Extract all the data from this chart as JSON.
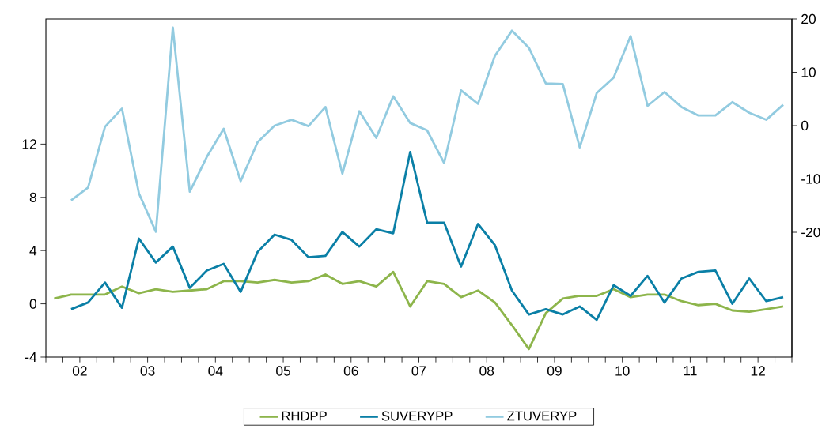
{
  "chart_data": {
    "type": "line",
    "x": [
      "2002-02-15",
      "2002-05-15",
      "2002-08-15",
      "2002-11-15",
      "2003-02-15",
      "2003-05-15",
      "2003-08-15",
      "2003-11-15",
      "2004-02-15",
      "2004-05-15",
      "2004-08-15",
      "2004-11-15",
      "2005-02-15",
      "2005-05-15",
      "2005-08-15",
      "2005-11-15",
      "2006-02-15",
      "2006-05-15",
      "2006-08-15",
      "2006-11-15",
      "2007-02-15",
      "2007-05-15",
      "2007-08-15",
      "2007-11-15",
      "2008-02-15",
      "2008-05-15",
      "2008-08-15",
      "2008-11-15",
      "2009-02-15",
      "2009-05-15",
      "2009-08-15",
      "2009-11-15",
      "2010-02-15",
      "2010-05-15",
      "2010-08-15",
      "2010-11-15",
      "2011-02-15",
      "2011-05-15",
      "2011-08-15",
      "2011-11-15",
      "2012-02-15",
      "2012-05-15",
      "2012-08-15",
      "2012-11-15"
    ],
    "xlim": [
      "2002-01-01",
      "2013-01-01"
    ],
    "xticks": [
      {
        "value": "2002-01-01",
        "label": null
      },
      {
        "value": "2002-04-01",
        "label": null
      },
      {
        "value": "2002-07-01",
        "label": "02"
      },
      {
        "value": "2002-10-01",
        "label": null
      },
      {
        "value": "2003-01-01",
        "label": null
      },
      {
        "value": "2003-04-01",
        "label": null
      },
      {
        "value": "2003-07-01",
        "label": "03"
      },
      {
        "value": "2003-10-01",
        "label": null
      },
      {
        "value": "2004-01-01",
        "label": null
      },
      {
        "value": "2004-04-01",
        "label": null
      },
      {
        "value": "2004-07-01",
        "label": "04"
      },
      {
        "value": "2004-10-01",
        "label": null
      },
      {
        "value": "2005-01-01",
        "label": null
      },
      {
        "value": "2005-04-01",
        "label": null
      },
      {
        "value": "2005-07-01",
        "label": "05"
      },
      {
        "value": "2005-10-01",
        "label": null
      },
      {
        "value": "2006-01-01",
        "label": null
      },
      {
        "value": "2006-04-01",
        "label": null
      },
      {
        "value": "2006-07-01",
        "label": "06"
      },
      {
        "value": "2006-10-01",
        "label": null
      },
      {
        "value": "2007-01-01",
        "label": null
      },
      {
        "value": "2007-04-01",
        "label": null
      },
      {
        "value": "2007-07-01",
        "label": "07"
      },
      {
        "value": "2007-10-01",
        "label": null
      },
      {
        "value": "2008-01-01",
        "label": null
      },
      {
        "value": "2008-04-01",
        "label": null
      },
      {
        "value": "2008-07-01",
        "label": "08"
      },
      {
        "value": "2008-10-01",
        "label": null
      },
      {
        "value": "2009-01-01",
        "label": null
      },
      {
        "value": "2009-04-01",
        "label": null
      },
      {
        "value": "2009-07-01",
        "label": "09"
      },
      {
        "value": "2009-10-01",
        "label": null
      },
      {
        "value": "2010-01-01",
        "label": null
      },
      {
        "value": "2010-04-01",
        "label": null
      },
      {
        "value": "2010-07-01",
        "label": "10"
      },
      {
        "value": "2010-10-01",
        "label": null
      },
      {
        "value": "2011-01-01",
        "label": null
      },
      {
        "value": "2011-04-01",
        "label": null
      },
      {
        "value": "2011-07-01",
        "label": "11"
      },
      {
        "value": "2011-10-01",
        "label": null
      },
      {
        "value": "2012-01-01",
        "label": null
      },
      {
        "value": "2012-04-01",
        "label": null
      },
      {
        "value": "2012-07-01",
        "label": "12"
      },
      {
        "value": "2012-10-01",
        "label": null
      },
      {
        "value": "2013-01-01",
        "label": null
      }
    ],
    "ylim": [
      -4,
      21.4
    ],
    "yticks": [
      -4,
      0,
      4,
      8,
      12
    ],
    "y2lim": [
      -43.4,
      20
    ],
    "y2ticks": [
      -20,
      -10,
      0,
      10,
      20
    ],
    "legend": "bottom",
    "grid": false,
    "series": [
      {
        "name": "RHDPP",
        "color": "#8db54b",
        "values": [
          0.4,
          0.7,
          0.7,
          0.7,
          1.3,
          0.8,
          1.1,
          0.9,
          1.0,
          1.1,
          1.7,
          1.7,
          1.6,
          1.8,
          1.6,
          1.7,
          2.2,
          1.5,
          1.7,
          1.3,
          2.4,
          -0.2,
          1.7,
          1.5,
          0.5,
          1.0,
          0.1,
          -1.6,
          -3.4,
          -0.7,
          0.4,
          0.6,
          0.6,
          1.1,
          0.5,
          0.7,
          0.7,
          0.2,
          -0.1,
          0.0,
          -0.5,
          -0.6,
          -0.4,
          -0.2
        ]
      },
      {
        "name": "SUVERYPP",
        "color": "#0a7fa6",
        "values": [
          null,
          -0.4,
          0.1,
          1.6,
          -0.3,
          4.9,
          3.1,
          4.3,
          1.2,
          2.5,
          3.0,
          0.9,
          3.9,
          5.2,
          4.8,
          3.5,
          3.6,
          5.4,
          4.3,
          5.6,
          5.3,
          11.4,
          6.1,
          6.1,
          2.8,
          6.0,
          4.4,
          1.0,
          -0.8,
          -0.4,
          -0.8,
          -0.2,
          -1.2,
          1.4,
          0.6,
          2.1,
          0.1,
          1.9,
          2.4,
          2.5,
          0.0,
          1.9,
          0.2,
          0.5
        ]
      },
      {
        "name": "ZTUVERYP",
        "color": "#92cbe0",
        "axis": "y2",
        "values": [
          null,
          -14.0,
          -11.6,
          -0.2,
          3.2,
          -12.7,
          -19.9,
          18.4,
          -12.4,
          -5.9,
          -0.6,
          -10.4,
          -3.1,
          0.0,
          1.1,
          -0.1,
          3.5,
          -9.0,
          2.7,
          -2.3,
          5.5,
          0.5,
          -0.9,
          -7.0,
          6.6,
          4.1,
          13.1,
          17.8,
          14.6,
          7.9,
          7.8,
          -4.1,
          6.1,
          9.0,
          16.8,
          3.7,
          6.3,
          3.5,
          1.9,
          1.9,
          4.4,
          2.4,
          1.1,
          3.9
        ]
      }
    ]
  }
}
